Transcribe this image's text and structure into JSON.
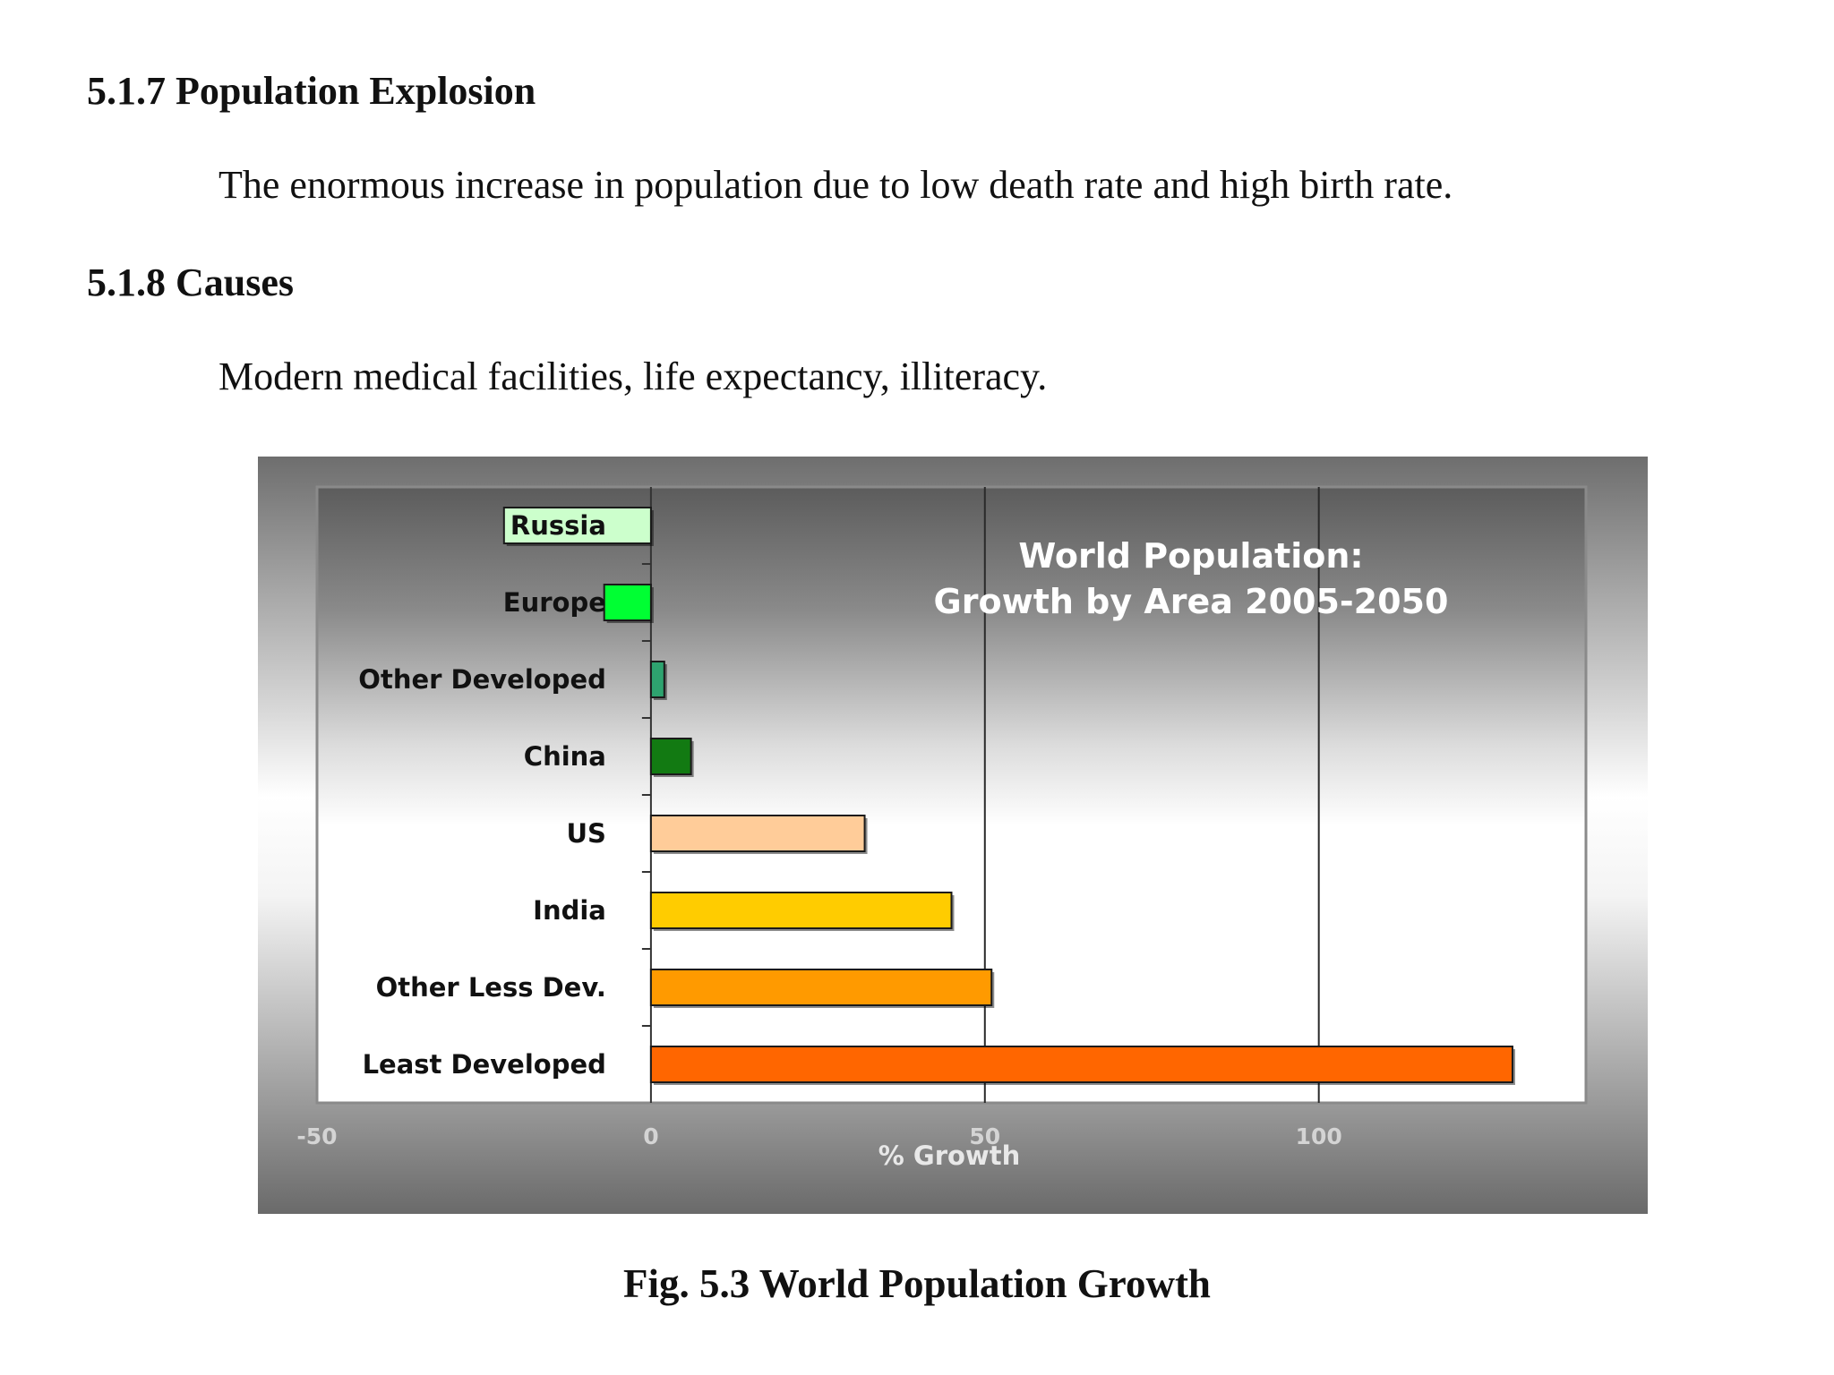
{
  "document": {
    "section_1": {
      "heading": "5.1.7 Population Explosion",
      "text": "The enormous increase in population due to low death rate and high birth rate."
    },
    "section_2": {
      "heading": "5.1.8 Causes",
      "text": "Modern medical facilities, life expectancy, illiteracy."
    },
    "caption": "Fig. 5.3 World Population Growth"
  },
  "chart_data": {
    "type": "bar",
    "orientation": "horizontal",
    "title": "World Population:",
    "subtitle": "Growth by Area 2005-2050",
    "xlabel": "% Growth",
    "ylabel": "",
    "xlim": [
      -50,
      140
    ],
    "xticks": [
      -50,
      0,
      50,
      100
    ],
    "grid": true,
    "categories": [
      "Russia",
      "Europe",
      "Other Developed",
      "China",
      "US",
      "India",
      "Other Less Dev.",
      "Least Developed"
    ],
    "values": [
      -22,
      -7,
      2,
      6,
      32,
      45,
      51,
      129
    ],
    "colors": [
      "#ccffcc",
      "#00ff33",
      "#2ea36f",
      "#127a12",
      "#ffcc99",
      "#ffcc00",
      "#ff9a00",
      "#ff6600"
    ]
  }
}
